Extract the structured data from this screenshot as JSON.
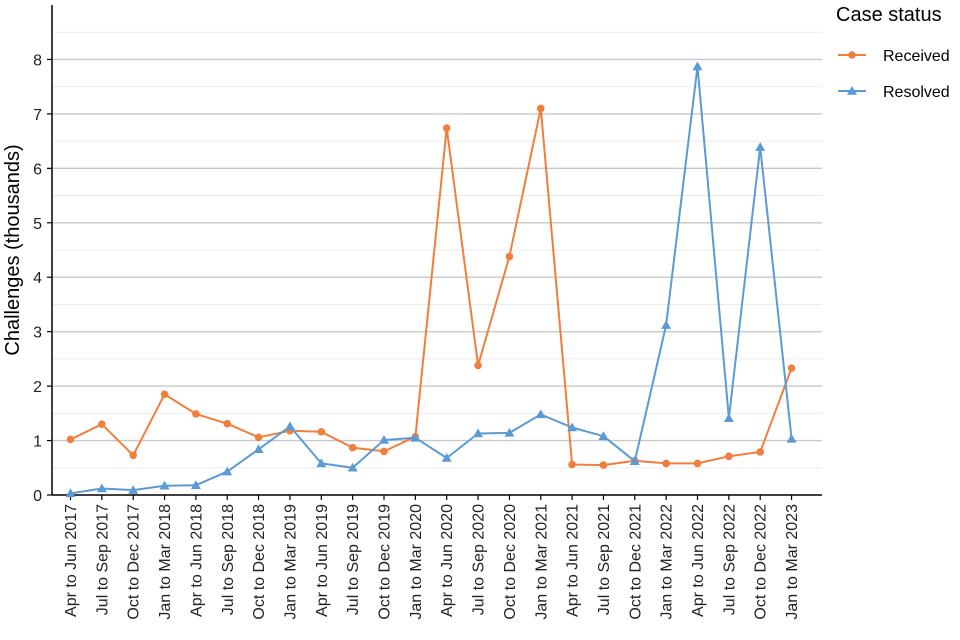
{
  "chart_data": {
    "type": "line",
    "ylabel": "Challenges (thousands)",
    "ylim": [
      0,
      9
    ],
    "yticks": [
      "0",
      "1",
      "2",
      "3",
      "4",
      "5",
      "6",
      "7",
      "8"
    ],
    "grid": true,
    "legend_title": "Case status",
    "legend_position": "right",
    "categories": [
      "Apr to Jun 2017",
      "Jul to Sep 2017",
      "Oct to Dec 2017",
      "Jan to Mar 2018",
      "Apr to Jun 2018",
      "Jul to Sep 2018",
      "Oct to Dec 2018",
      "Jan to Mar 2019",
      "Apr to Jun 2019",
      "Jul to Sep 2019",
      "Oct to Dec 2019",
      "Jan to Mar 2020",
      "Apr to Jun 2020",
      "Jul to Sep 2020",
      "Oct to Dec 2020",
      "Jan to Mar 2021",
      "Apr to Jun 2021",
      "Jul to Sep 2021",
      "Oct to Dec 2021",
      "Jan to Mar 2022",
      "Apr to Jun 2022",
      "Jul to Sep 2022",
      "Oct to Dec 2022",
      "Jan to Mar 2023"
    ],
    "series": [
      {
        "name": "Received",
        "color": "#f07e3c",
        "marker": "circle",
        "values": [
          1.02,
          1.3,
          0.73,
          1.85,
          1.49,
          1.31,
          1.06,
          1.18,
          1.16,
          0.87,
          0.8,
          1.07,
          6.74,
          2.38,
          4.38,
          7.1,
          0.56,
          0.55,
          0.63,
          0.58,
          0.58,
          0.71,
          0.79,
          2.33
        ]
      },
      {
        "name": "Resolved",
        "color": "#5b9bd5",
        "marker": "triangle",
        "values": [
          0.03,
          0.12,
          0.09,
          0.17,
          0.18,
          0.43,
          0.84,
          1.26,
          0.58,
          0.5,
          1.01,
          1.05,
          0.68,
          1.13,
          1.14,
          1.48,
          1.24,
          1.08,
          0.62,
          3.12,
          7.87,
          1.41,
          6.39,
          1.03
        ]
      }
    ]
  }
}
